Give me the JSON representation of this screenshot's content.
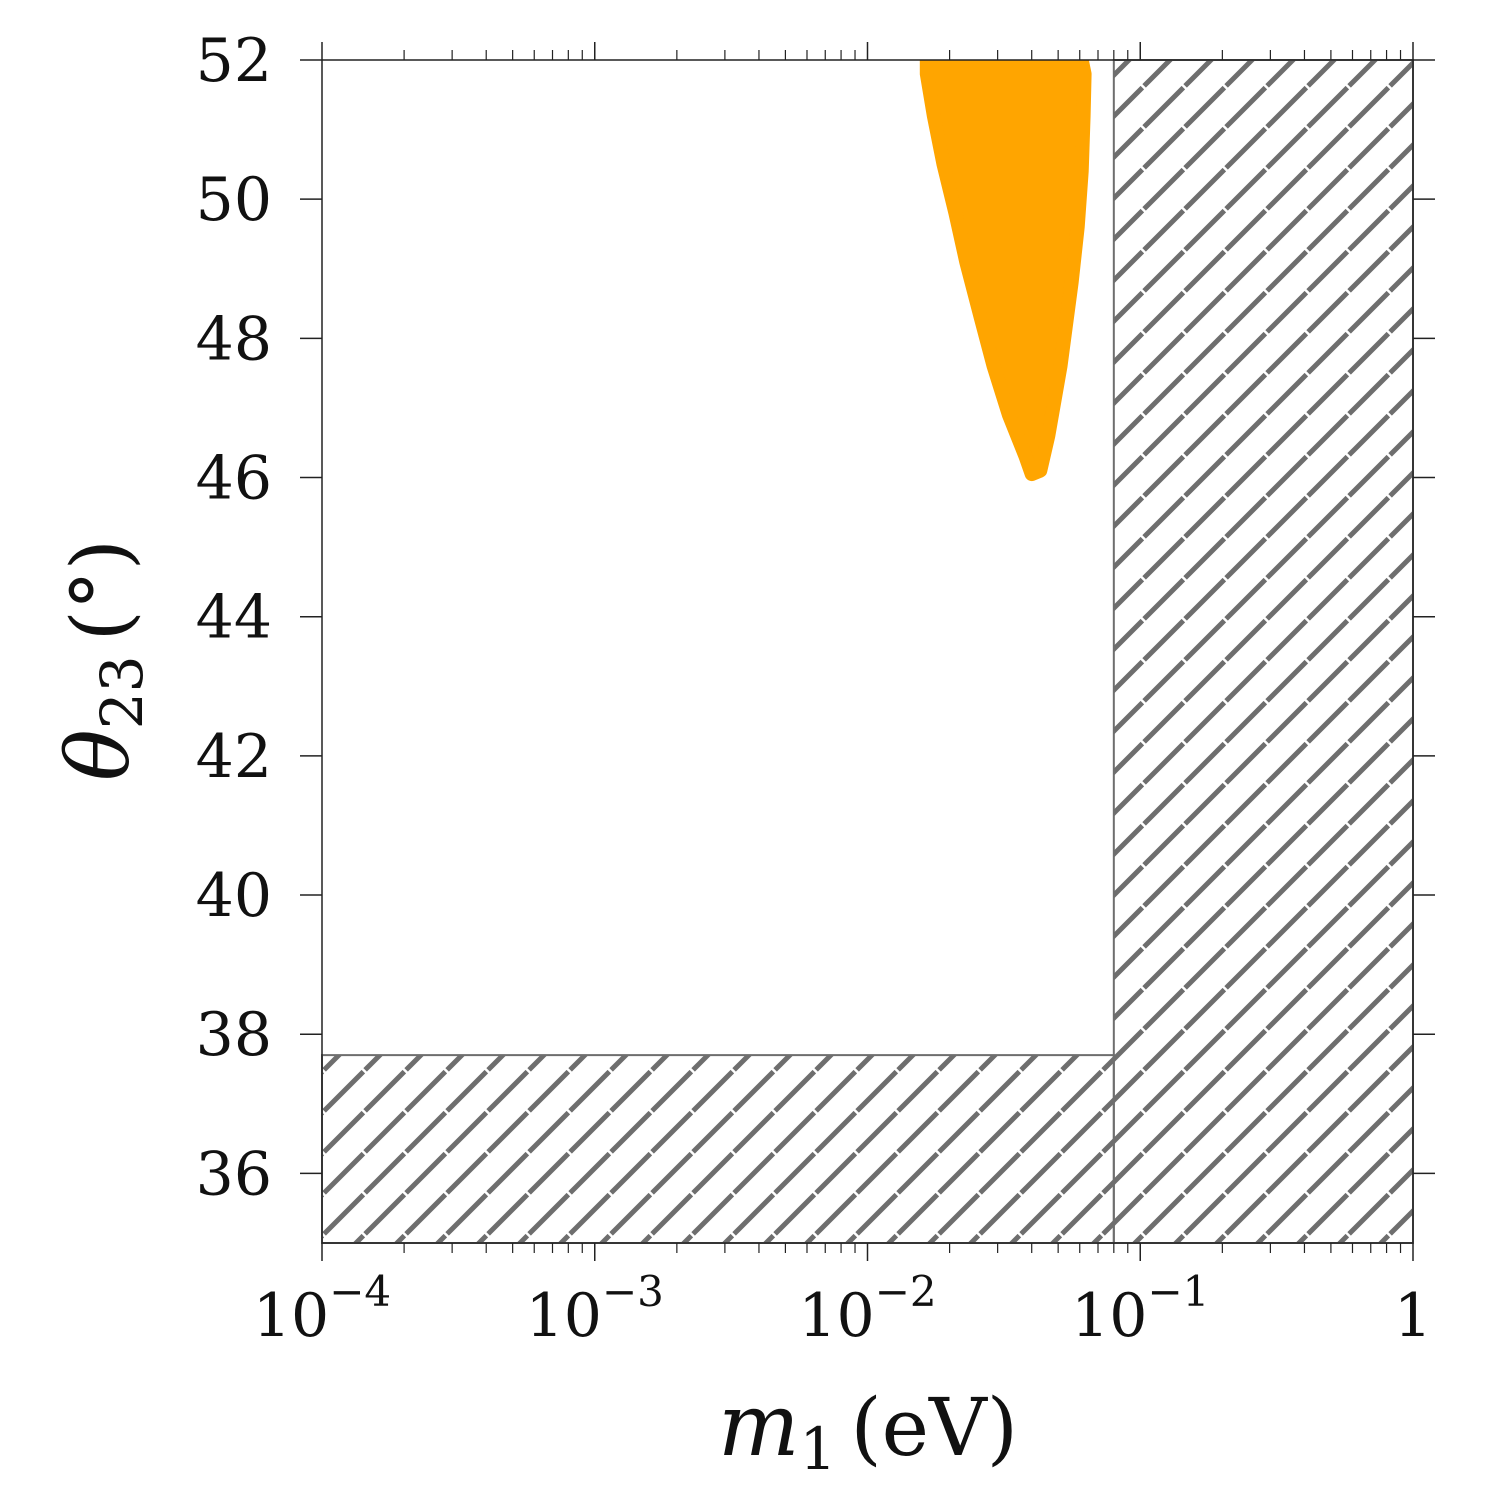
{
  "chart_data": {
    "type": "scatter",
    "title": "",
    "xlabel": {
      "symbol": "m",
      "subscript": "1",
      "unit": "(eV)"
    },
    "ylabel": {
      "symbol": "θ",
      "subscript": "23",
      "unit": "(°)"
    },
    "x_scale": "log",
    "xlim": [
      0.0001,
      1
    ],
    "ylim": [
      35,
      52
    ],
    "x_ticks": [
      {
        "value": 0.0001,
        "base": "10",
        "exp": "−4"
      },
      {
        "value": 0.001,
        "base": "10",
        "exp": "−3"
      },
      {
        "value": 0.01,
        "base": "10",
        "exp": "−2"
      },
      {
        "value": 0.1,
        "base": "10",
        "exp": "−1"
      },
      {
        "value": 1,
        "base": "1",
        "exp": ""
      }
    ],
    "y_ticks": [
      36,
      38,
      40,
      42,
      44,
      46,
      48,
      50,
      52
    ],
    "grid": false,
    "excluded_regions": [
      {
        "x": [
          0.08,
          1
        ],
        "y": [
          35,
          52
        ],
        "style": "hatched"
      },
      {
        "x": [
          0.0001,
          0.08
        ],
        "y": [
          35,
          37.7
        ],
        "style": "hatched"
      }
    ],
    "region_color": "#6e6e6e",
    "series": [
      {
        "color": "#FFA500",
        "envelope": [
          [
            0.0165,
            52.0
          ],
          [
            0.0165,
            51.8
          ],
          [
            0.0175,
            51.2
          ],
          [
            0.019,
            50.5
          ],
          [
            0.021,
            49.8
          ],
          [
            0.023,
            49.1
          ],
          [
            0.026,
            48.3
          ],
          [
            0.029,
            47.6
          ],
          [
            0.033,
            46.9
          ],
          [
            0.038,
            46.3
          ],
          [
            0.04,
            46.05
          ],
          [
            0.043,
            46.1
          ],
          [
            0.046,
            46.6
          ],
          [
            0.051,
            47.6
          ],
          [
            0.056,
            48.8
          ],
          [
            0.059,
            49.6
          ],
          [
            0.061,
            50.4
          ],
          [
            0.062,
            51.2
          ],
          [
            0.0625,
            51.8
          ],
          [
            0.061,
            52.0
          ]
        ]
      }
    ]
  }
}
